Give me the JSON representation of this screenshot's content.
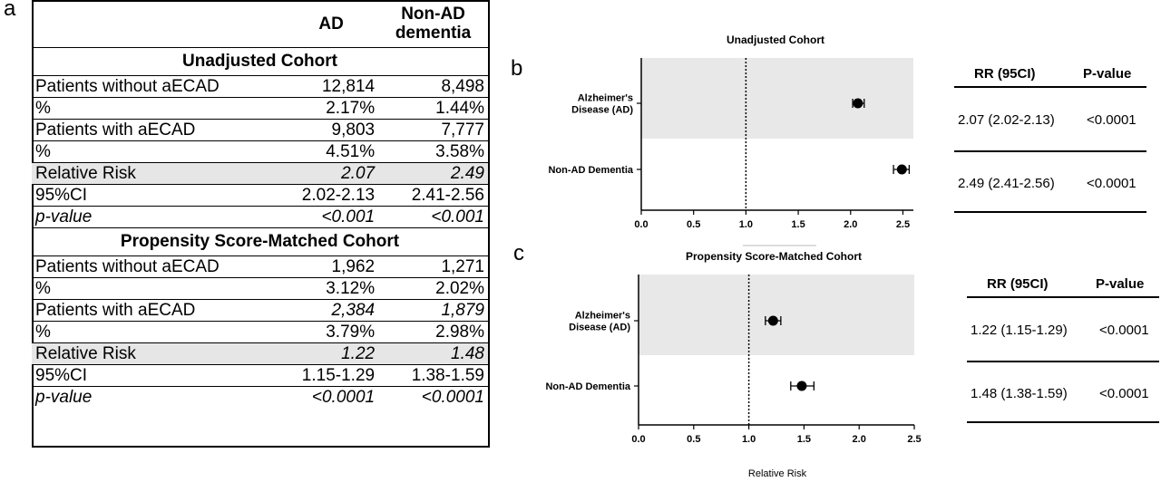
{
  "panels": {
    "a": "a",
    "b": "b",
    "c": "c"
  },
  "table": {
    "header": {
      "col1": "AD",
      "col2_line1": "Non-AD",
      "col2_line2": "dementia"
    },
    "sections": [
      {
        "title": "Unadjusted Cohort",
        "rows": [
          {
            "label": "Patients without aECAD",
            "ad": "12,814",
            "nonad": "8,498",
            "italic": false,
            "shade": false,
            "label_italic": false
          },
          {
            "label": "%",
            "ad": "2.17%",
            "nonad": "1.44%",
            "italic": false,
            "shade": false,
            "label_italic": false
          },
          {
            "label": "Patients with aECAD",
            "ad": "9,803",
            "nonad": "7,777",
            "italic": false,
            "shade": false,
            "label_italic": false
          },
          {
            "label": "%",
            "ad": "4.51%",
            "nonad": "3.58%",
            "italic": false,
            "shade": false,
            "label_italic": false
          },
          {
            "label": "Relative Risk",
            "ad": "2.07",
            "nonad": "2.49",
            "italic": true,
            "shade": true,
            "label_italic": false
          },
          {
            "label": "95%CI",
            "ad": "2.02-2.13",
            "nonad": "2.41-2.56",
            "italic": false,
            "shade": false,
            "label_italic": false
          },
          {
            "label": "p-value",
            "ad": "<0.001",
            "nonad": "<0.001",
            "italic": true,
            "shade": false,
            "label_italic": true
          }
        ]
      },
      {
        "title": "Propensity Score-Matched Cohort",
        "rows": [
          {
            "label": "Patients without aECAD",
            "ad": "1,962",
            "nonad": "1,271",
            "italic": false,
            "shade": false,
            "label_italic": false
          },
          {
            "label": "%",
            "ad": "3.12%",
            "nonad": "2.02%",
            "italic": false,
            "shade": false,
            "label_italic": false
          },
          {
            "label": "Patients with aECAD",
            "ad": "2,384",
            "nonad": "1,879",
            "italic": true,
            "shade": false,
            "label_italic": false
          },
          {
            "label": "%",
            "ad": "3.79%",
            "nonad": "2.98%",
            "italic": false,
            "shade": false,
            "label_italic": false
          },
          {
            "label": "Relative Risk",
            "ad": "1.22",
            "nonad": "1.48",
            "italic": true,
            "shade": true,
            "label_italic": false
          },
          {
            "label": "95%CI",
            "ad": "1.15-1.29",
            "nonad": "1.38-1.59",
            "italic": false,
            "shade": false,
            "label_italic": false
          },
          {
            "label": "p-value",
            "ad": "<0.0001",
            "nonad": "<0.0001",
            "italic": true,
            "shade": false,
            "label_italic": true
          }
        ]
      }
    ]
  },
  "chart_data": [
    {
      "type": "scatter",
      "subtype": "forest",
      "title": "Unadjusted Cohort",
      "xlabel": "",
      "xlim": [
        0,
        2.6
      ],
      "xticks": [
        "0.0",
        "0.5",
        "1.0",
        "1.5",
        "2.0",
        "2.5"
      ],
      "reference_line": 1.0,
      "categories": [
        "Alzheimer's Disease (AD)",
        "Non-AD Dementia"
      ],
      "category_lines": [
        [
          "Alzheimer's",
          "Disease (AD)"
        ],
        [
          "Non-AD Dementia"
        ]
      ],
      "shaded_category": 0,
      "points": [
        {
          "rr": 2.07,
          "lo": 2.02,
          "hi": 2.13
        },
        {
          "rr": 2.49,
          "lo": 2.41,
          "hi": 2.56
        }
      ],
      "rr_table": {
        "headers": [
          "RR (95CI)",
          "P-value"
        ],
        "rows": [
          [
            "2.07 (2.02-2.13)",
            "<0.0001"
          ],
          [
            "2.49 (2.41-2.56)",
            "<0.0001"
          ]
        ]
      }
    },
    {
      "type": "scatter",
      "subtype": "forest",
      "title": "Propensity Score-Matched Cohort",
      "xlabel": "Relative Risk",
      "xlim": [
        0,
        2.5
      ],
      "xticks": [
        "0.0",
        "0.5",
        "1.0",
        "1.5",
        "2.0",
        "2.5"
      ],
      "reference_line": 1.0,
      "categories": [
        "Alzheimer's Disease (AD)",
        "Non-AD Dementia"
      ],
      "category_lines": [
        [
          "Alzheimer's",
          "Disease (AD)"
        ],
        [
          "Non-AD Dementia"
        ]
      ],
      "shaded_category": 0,
      "points": [
        {
          "rr": 1.22,
          "lo": 1.15,
          "hi": 1.29
        },
        {
          "rr": 1.48,
          "lo": 1.38,
          "hi": 1.59
        }
      ],
      "rr_table": {
        "headers": [
          "RR (95CI)",
          "P-value"
        ],
        "rows": [
          [
            "1.22 (1.15-1.29)",
            "<0.0001"
          ],
          [
            "1.48 (1.38-1.59)",
            "<0.0001"
          ]
        ]
      }
    }
  ]
}
